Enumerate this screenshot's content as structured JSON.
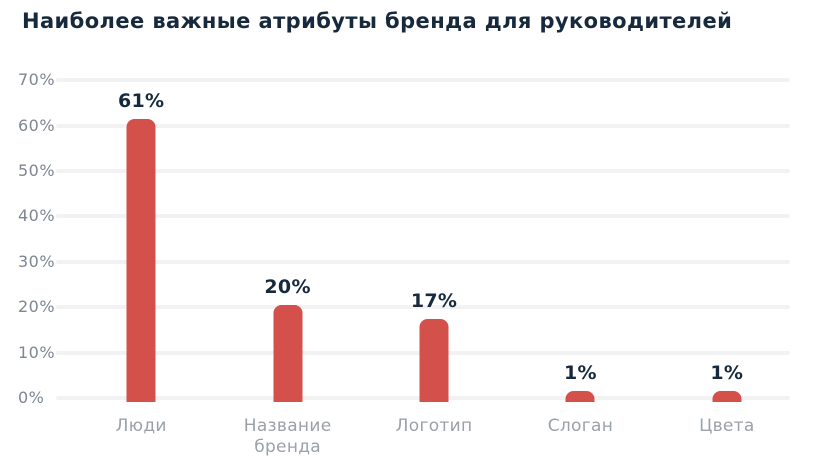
{
  "chart_data": {
    "type": "bar",
    "title": "Наиболее важные атрибуты бренда для руководителей",
    "categories": [
      "Люди",
      "Название бренда",
      "Логотип",
      "Слоган",
      "Цвета"
    ],
    "values": [
      61,
      20,
      17,
      1,
      1
    ],
    "data_labels": [
      "61%",
      "20%",
      "17%",
      "1%",
      "1%"
    ],
    "xlabel": "",
    "ylabel": "",
    "ylim": [
      0,
      70
    ],
    "yticks": [
      70,
      60,
      50,
      40,
      30,
      20,
      10,
      0
    ],
    "ytick_labels": [
      "70%",
      "60%",
      "50%",
      "40%",
      "30%",
      "20%",
      "10%",
      "0%"
    ],
    "grid": true,
    "legend": false,
    "colors": {
      "bar": "#d4514b",
      "title": "#17293c",
      "data_label": "#17293c",
      "y_tick": "#7d8692",
      "x_tick": "#9aa1a9",
      "gridline": "#f2f2f3",
      "background": "#ffffff"
    }
  }
}
